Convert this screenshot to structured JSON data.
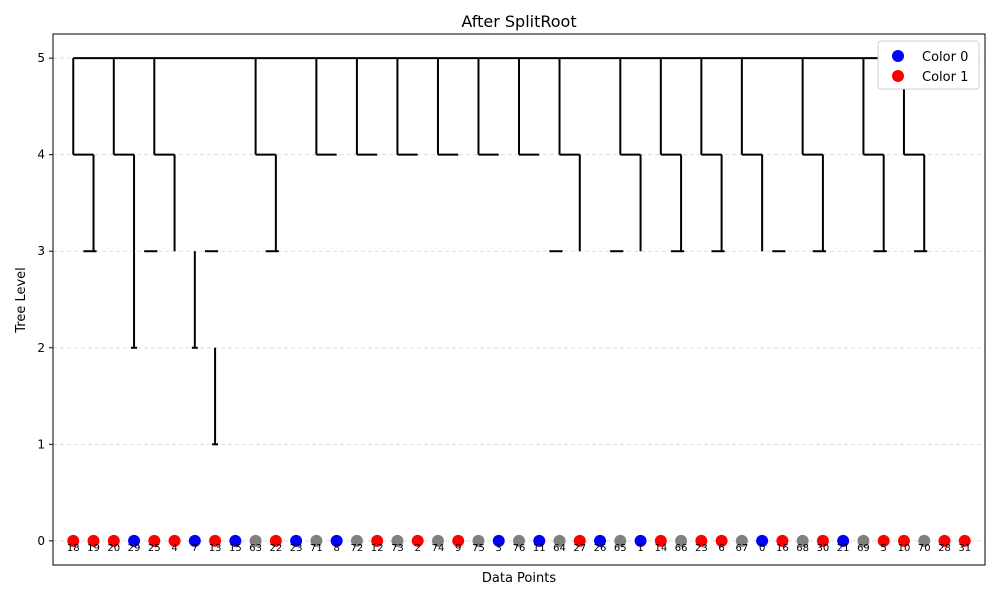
{
  "chart_data": {
    "type": "scatter",
    "title": "After SplitRoot",
    "xlabel": "Data Points",
    "ylabel": "Tree Level",
    "ylim": [
      -0.25,
      5.25
    ],
    "yticks": [
      0,
      1,
      2,
      3,
      4,
      5
    ],
    "grid": "horizontal dashed",
    "legend": {
      "position": "top-right",
      "entries": [
        {
          "label": "Color 0",
          "color": "#0000ff"
        },
        {
          "label": "Color 1",
          "color": "#ff0000"
        }
      ]
    },
    "colors": {
      "0": "#0000ff",
      "1": "#ff0000",
      "none": "#808080"
    },
    "points": [
      {
        "label": "18",
        "color": "1"
      },
      {
        "label": "19",
        "color": "1"
      },
      {
        "label": "20",
        "color": "1"
      },
      {
        "label": "29",
        "color": "0"
      },
      {
        "label": "25",
        "color": "1"
      },
      {
        "label": "4",
        "color": "1"
      },
      {
        "label": "7",
        "color": "0"
      },
      {
        "label": "13",
        "color": "1"
      },
      {
        "label": "15",
        "color": "0"
      },
      {
        "label": "63",
        "color": "none"
      },
      {
        "label": "22",
        "color": "1"
      },
      {
        "label": "23",
        "color": "0"
      },
      {
        "label": "71",
        "color": "none"
      },
      {
        "label": "8",
        "color": "0"
      },
      {
        "label": "72",
        "color": "none"
      },
      {
        "label": "12",
        "color": "1"
      },
      {
        "label": "73",
        "color": "none"
      },
      {
        "label": "2",
        "color": "1"
      },
      {
        "label": "74",
        "color": "none"
      },
      {
        "label": "9",
        "color": "1"
      },
      {
        "label": "75",
        "color": "none"
      },
      {
        "label": "3",
        "color": "0"
      },
      {
        "label": "76",
        "color": "none"
      },
      {
        "label": "11",
        "color": "0"
      },
      {
        "label": "64",
        "color": "none"
      },
      {
        "label": "27",
        "color": "1"
      },
      {
        "label": "26",
        "color": "0"
      },
      {
        "label": "65",
        "color": "none"
      },
      {
        "label": "1",
        "color": "0"
      },
      {
        "label": "14",
        "color": "1"
      },
      {
        "label": "66",
        "color": "none"
      },
      {
        "label": "23",
        "color": "1"
      },
      {
        "label": "6",
        "color": "1"
      },
      {
        "label": "67",
        "color": "none"
      },
      {
        "label": "0",
        "color": "0"
      },
      {
        "label": "16",
        "color": "1"
      },
      {
        "label": "68",
        "color": "none"
      },
      {
        "label": "30",
        "color": "1"
      },
      {
        "label": "21",
        "color": "0"
      },
      {
        "label": "69",
        "color": "none"
      },
      {
        "label": "5",
        "color": "1"
      },
      {
        "label": "10",
        "color": "1"
      },
      {
        "label": "70",
        "color": "none"
      },
      {
        "label": "28",
        "color": "1"
      },
      {
        "label": "31",
        "color": "1"
      }
    ],
    "point_x": [
      1,
      2,
      3,
      4,
      5,
      6,
      7,
      8,
      9,
      10,
      11,
      12,
      13,
      14,
      15,
      16,
      17,
      18,
      19,
      20,
      21,
      22,
      23,
      24,
      25,
      26,
      27,
      28,
      29,
      30,
      31,
      32,
      33,
      34,
      35,
      36,
      37,
      38,
      39,
      40,
      41,
      42,
      43,
      44,
      45
    ],
    "tree": {
      "root_level": 5,
      "root_span": [
        1,
        43
      ],
      "level4_nodes": [
        {
          "span": [
            1,
            2
          ],
          "drop": 1
        },
        {
          "span": [
            3,
            4
          ],
          "drop": 3
        },
        {
          "span": [
            5,
            6
          ],
          "drop": 6
        },
        {
          "span": [
            10,
            11
          ],
          "drop": 11
        },
        {
          "span": [
            13,
            14
          ],
          "drop": null
        },
        {
          "span": [
            15,
            16
          ],
          "drop": null
        },
        {
          "span": [
            17,
            18
          ],
          "drop": null
        },
        {
          "span": [
            19,
            20
          ],
          "drop": null
        },
        {
          "span": [
            21,
            22
          ],
          "drop": null
        },
        {
          "span": [
            23,
            24
          ],
          "drop": null
        },
        {
          "span": [
            25,
            26
          ],
          "drop": 25
        },
        {
          "span": [
            28,
            29
          ],
          "drop": 28
        },
        {
          "span": [
            30,
            31
          ],
          "drop": 30
        },
        {
          "span": [
            32,
            33
          ],
          "drop": 32
        },
        {
          "span": [
            34,
            35
          ],
          "drop": 34
        },
        {
          "span": [
            37,
            38
          ],
          "drop": 37
        },
        {
          "span": [
            40,
            41
          ],
          "drop": 40
        },
        {
          "span": [
            42,
            43
          ],
          "drop": 42
        }
      ],
      "level3_leaves": [
        2,
        5,
        8,
        11,
        25,
        28,
        31,
        33,
        36,
        38,
        41,
        43
      ],
      "deep_chain": [
        {
          "x": 4,
          "from": 3,
          "to": 2
        },
        {
          "x": 7,
          "from": 3,
          "to": 2
        },
        {
          "x": 8,
          "from": 2,
          "to": 1
        }
      ]
    }
  }
}
